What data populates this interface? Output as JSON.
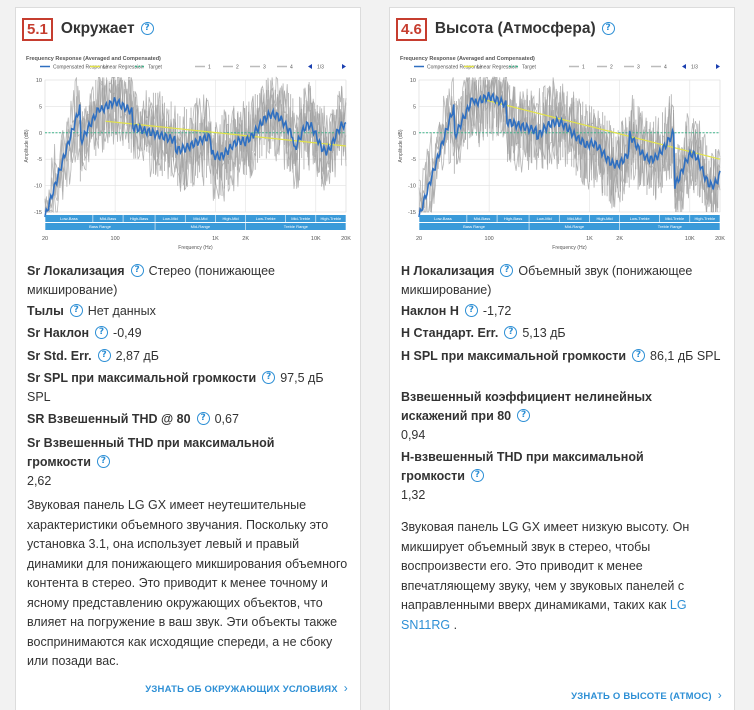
{
  "cards": [
    {
      "score": "5.1",
      "title": "Окружает",
      "chart": {
        "header": "Frequency Response (Averaged and Compensated)",
        "legend": [
          "Compensated Response",
          "Linear Regression",
          "Target",
          "1",
          "2",
          "3",
          "4"
        ],
        "pager": "1/3",
        "ylabel": "Amplitude (dB)",
        "xlabel": "Frequency (Hz)",
        "y_ticks": [
          "10",
          "5",
          "0",
          "-5",
          "-10",
          "-15"
        ],
        "x_ticks": [
          "20",
          "100",
          "1K",
          "2K",
          "10K",
          "20K"
        ],
        "bands_top": [
          "Low-Bass",
          "Mid-Bass",
          "High-Bass",
          "Low-Mid",
          "Mid-Mid",
          "High-Mid",
          "Low-Treble",
          "Mid-Treble",
          "High-Treble"
        ],
        "bands_bottom": [
          "Bass Range",
          "Mid-Range",
          "Treble Range"
        ]
      },
      "fields": [
        {
          "label": "Sr Локализация",
          "value": "Стерео (понижающее микширование)"
        },
        {
          "label": "Тылы",
          "value": "Нет данных"
        },
        {
          "label": "Sr Наклон",
          "value": "-0,49"
        },
        {
          "label": "Sr Std. Err.",
          "value": "2,87 дБ"
        },
        {
          "label": "Sr SPL при максимальной громкости",
          "value": "97,5 дБ SPL"
        },
        {
          "label": "SR Взвешенный THD @ 80",
          "value": "0,67"
        },
        {
          "label": "Sr Взвешенный THD при максимальной громкости",
          "value": "2,62"
        }
      ],
      "description": "Звуковая панель LG GX имеет неутешительные характеристики объемного звучания. Поскольку это установка 3.1, она использует левый и правый динамики для понижающего микширования объемного контента в стерео. Это приводит к менее точному и ясному представлению окружающих объектов, что влияет на погружение в ваш звук. Эти объекты также воспринимаются как исходящие спереди, а не сбоку или позади вас.",
      "link": "Узнать об окружающих условиях"
    },
    {
      "score": "4.6",
      "title": "Высота (Атмосфера)",
      "chart": {
        "header": "Frequency Response (Averaged and Compensated)",
        "legend": [
          "Compensated Response",
          "Linear Regression",
          "Target",
          "1",
          "2",
          "3",
          "4"
        ],
        "pager": "1/3",
        "ylabel": "Amplitude (dB)",
        "xlabel": "Frequency (Hz)",
        "y_ticks": [
          "10",
          "5",
          "0",
          "-5",
          "-10",
          "-15"
        ],
        "x_ticks": [
          "20",
          "100",
          "1K",
          "2K",
          "10K",
          "20K"
        ],
        "bands_top": [
          "Low-Bass",
          "Mid-Bass",
          "High-Bass",
          "Low-Mid",
          "Mid-Mid",
          "High-Mid",
          "Low-Treble",
          "Mid-Treble",
          "High-Treble"
        ],
        "bands_bottom": [
          "Bass Range",
          "Mid-Range",
          "Treble Range"
        ]
      },
      "fields": [
        {
          "label": "Н Локализация",
          "value": "Объемный звук (понижающее микширование)"
        },
        {
          "label": "Наклон Н",
          "value": "-1,72"
        },
        {
          "label": "Н Стандарт. Err.",
          "value": "5,13 дБ"
        },
        {
          "label": "Н SPL при максимальной громкости",
          "value": "86,1 дБ SPL"
        },
        {
          "label": "Взвешенный коэффициент нелинейных искажений при 80",
          "value": "0,94"
        },
        {
          "label": "Н-взвешенный THD при максимальной громкости",
          "value": "1,32"
        }
      ],
      "description": "Звуковая панель LG GX имеет низкую высоту. Он микширует объемный звук в стерео, чтобы воспроизвести его. Это приводит к менее впечатляющему звуку, чем у звуковых панелей с направленными вверх динамиками, таких как",
      "description_link": "LG SN11RG",
      "description_end": ".",
      "link": "Узнать о высоте (Атмос)"
    }
  ],
  "colors": {
    "score": "#c63d2f",
    "accent": "#2d8fd5",
    "response": "#2f6fc0",
    "regression": "#e2e24a",
    "target": "#3fb38a",
    "band": "#3a9ad9"
  },
  "icons": {
    "help": "question-circle-icon",
    "chevron": "chevron-right-icon"
  }
}
